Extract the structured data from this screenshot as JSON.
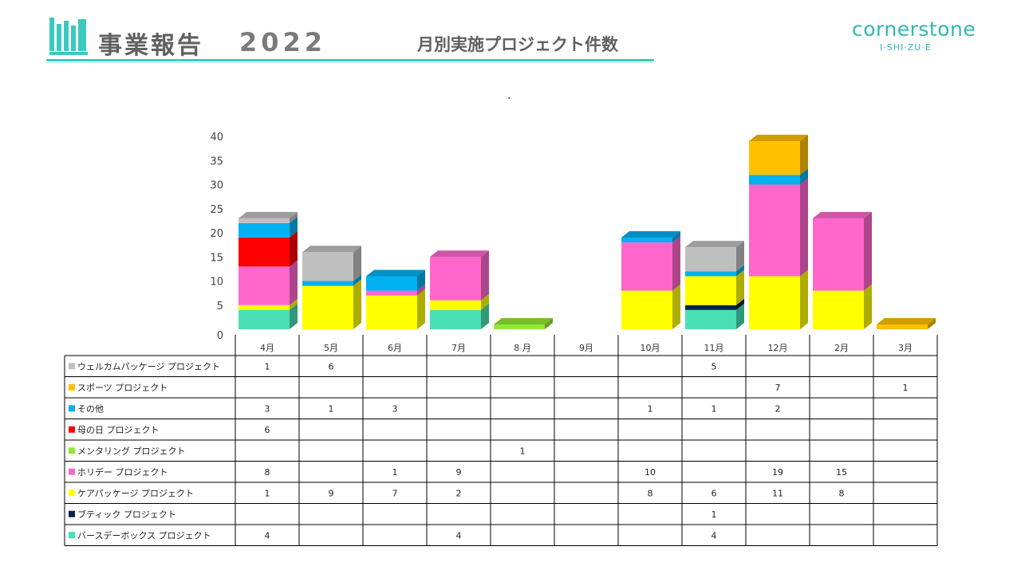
{
  "header": {
    "title": "事業報告",
    "year": "2022",
    "subtitle": "月別実施プロジェクト件数",
    "brand": "cornerstone",
    "brand_sub": "I·SHI·ZU·E",
    "dot": "."
  },
  "colors": {
    "accent": "#3ac9c0"
  },
  "chart_data": {
    "type": "bar",
    "stacked": true,
    "categories": [
      "4月",
      "5月",
      "6月",
      "7月",
      "8 月",
      "9月",
      "10月",
      "11月",
      "12月",
      "2月",
      "3月"
    ],
    "ylim": [
      0,
      40
    ],
    "yticks": [
      0,
      5,
      10,
      15,
      20,
      25,
      30,
      35,
      40
    ],
    "grid": false,
    "legend": "data-table",
    "series": [
      {
        "name": "バースデーボックス プロジェクト",
        "color": "#48e0b4",
        "values": [
          4,
          null,
          null,
          4,
          null,
          null,
          null,
          4,
          null,
          null,
          null
        ]
      },
      {
        "name": "ブティック プロジェクト",
        "color": "#0d2148",
        "values": [
          null,
          null,
          null,
          null,
          null,
          null,
          null,
          1,
          null,
          null,
          null
        ]
      },
      {
        "name": "ケアパッケージ プロジェクト",
        "color": "#ffff00",
        "values": [
          1,
          9,
          7,
          2,
          null,
          null,
          8,
          6,
          11,
          8,
          null
        ]
      },
      {
        "name": "ホリデー プロジェクト",
        "color": "#ff66cc",
        "values": [
          8,
          null,
          1,
          9,
          null,
          null,
          10,
          null,
          19,
          15,
          null
        ]
      },
      {
        "name": "メンタリング プロジェクト",
        "color": "#92e834",
        "values": [
          null,
          null,
          null,
          null,
          1,
          null,
          null,
          null,
          null,
          null,
          null
        ]
      },
      {
        "name": "母の日 プロジェクト",
        "color": "#ff0000",
        "values": [
          6,
          null,
          null,
          null,
          null,
          null,
          null,
          null,
          null,
          null,
          null
        ]
      },
      {
        "name": "その他",
        "color": "#00b0f0",
        "values": [
          3,
          1,
          3,
          null,
          null,
          null,
          1,
          1,
          2,
          null,
          null
        ]
      },
      {
        "name": "スポーツ プロジェクト",
        "color": "#ffc000",
        "values": [
          null,
          null,
          null,
          null,
          null,
          null,
          null,
          null,
          7,
          null,
          1
        ]
      },
      {
        "name": "ウェルカムパッケージ プロジェクト",
        "color": "#bfbfbf",
        "values": [
          1,
          6,
          null,
          null,
          null,
          null,
          null,
          5,
          null,
          null,
          null
        ]
      }
    ]
  }
}
